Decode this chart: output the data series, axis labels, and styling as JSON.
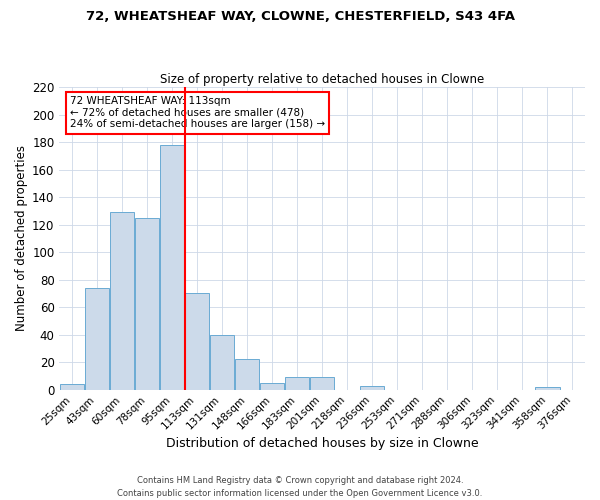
{
  "title": "72, WHEATSHEAF WAY, CLOWNE, CHESTERFIELD, S43 4FA",
  "subtitle": "Size of property relative to detached houses in Clowne",
  "xlabel": "Distribution of detached houses by size in Clowne",
  "ylabel": "Number of detached properties",
  "bar_color": "#ccdaea",
  "bar_edge_color": "#6aaad4",
  "bins": [
    "25sqm",
    "43sqm",
    "60sqm",
    "78sqm",
    "95sqm",
    "113sqm",
    "131sqm",
    "148sqm",
    "166sqm",
    "183sqm",
    "201sqm",
    "218sqm",
    "236sqm",
    "253sqm",
    "271sqm",
    "288sqm",
    "306sqm",
    "323sqm",
    "341sqm",
    "358sqm",
    "376sqm"
  ],
  "values": [
    4,
    74,
    129,
    125,
    178,
    70,
    40,
    22,
    5,
    9,
    9,
    0,
    3,
    0,
    0,
    0,
    0,
    0,
    0,
    2,
    0
  ],
  "ylim": [
    0,
    220
  ],
  "yticks": [
    0,
    20,
    40,
    60,
    80,
    100,
    120,
    140,
    160,
    180,
    200,
    220
  ],
  "red_line_bin_index": 5,
  "annotation_title": "72 WHEATSHEAF WAY: 113sqm",
  "annotation_line1": "← 72% of detached houses are smaller (478)",
  "annotation_line2": "24% of semi-detached houses are larger (158) →",
  "footer1": "Contains HM Land Registry data © Crown copyright and database right 2024.",
  "footer2": "Contains public sector information licensed under the Open Government Licence v3.0.",
  "background_color": "#ffffff",
  "grid_color": "#cdd8e8"
}
